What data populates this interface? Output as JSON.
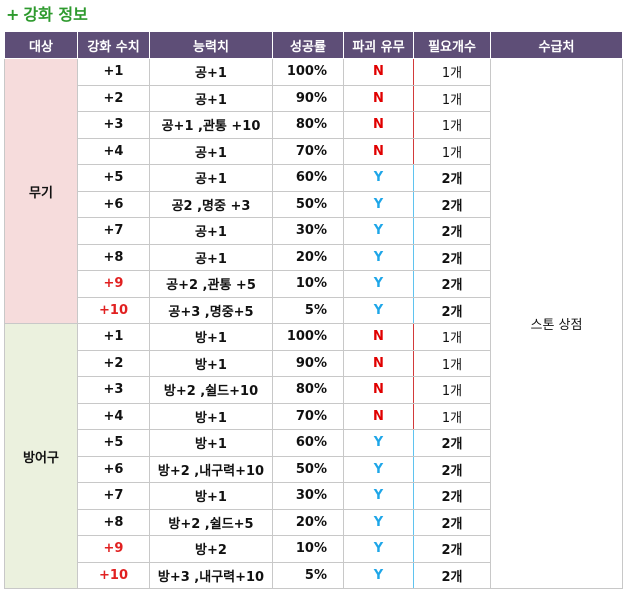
{
  "title": {
    "plus": "+",
    "text": "강화 정보"
  },
  "headers": [
    "대상",
    "강화 수치",
    "능력치",
    "성공률",
    "파괴 유무",
    "필요개수",
    "수급처"
  ],
  "source": "스톤 상점",
  "groups": [
    {
      "target": "무기",
      "rows": [
        {
          "level": "+1",
          "stat": "공+1",
          "rate": "100%",
          "destroy": "N",
          "count": "1개"
        },
        {
          "level": "+2",
          "stat": "공+1",
          "rate": "90%",
          "destroy": "N",
          "count": "1개"
        },
        {
          "level": "+3",
          "stat": "공+1 ,관통 +10",
          "rate": "80%",
          "destroy": "N",
          "count": "1개"
        },
        {
          "level": "+4",
          "stat": "공+1",
          "rate": "70%",
          "destroy": "N",
          "count": "1개"
        },
        {
          "level": "+5",
          "stat": "공+1",
          "rate": "60%",
          "destroy": "Y",
          "count": "2개"
        },
        {
          "level": "+6",
          "stat": "공2 ,명중 +3",
          "rate": "50%",
          "destroy": "Y",
          "count": "2개"
        },
        {
          "level": "+7",
          "stat": "공+1",
          "rate": "30%",
          "destroy": "Y",
          "count": "2개"
        },
        {
          "level": "+8",
          "stat": "공+1",
          "rate": "20%",
          "destroy": "Y",
          "count": "2개"
        },
        {
          "level": "+9",
          "stat": "공+2 ,관통 +5",
          "rate": "10%",
          "destroy": "Y",
          "count": "2개"
        },
        {
          "level": "+10",
          "stat": "공+3 ,명중+5",
          "rate": "5%",
          "destroy": "Y",
          "count": "2개"
        }
      ]
    },
    {
      "target": "방어구",
      "rows": [
        {
          "level": "+1",
          "stat": "방+1",
          "rate": "100%",
          "destroy": "N",
          "count": "1개"
        },
        {
          "level": "+2",
          "stat": "방+1",
          "rate": "90%",
          "destroy": "N",
          "count": "1개"
        },
        {
          "level": "+3",
          "stat": "방+2 ,쉴드+10",
          "rate": "80%",
          "destroy": "N",
          "count": "1개"
        },
        {
          "level": "+4",
          "stat": "방+1",
          "rate": "70%",
          "destroy": "N",
          "count": "1개"
        },
        {
          "level": "+5",
          "stat": "방+1",
          "rate": "60%",
          "destroy": "Y",
          "count": "2개"
        },
        {
          "level": "+6",
          "stat": "방+2 ,내구력+10",
          "rate": "50%",
          "destroy": "Y",
          "count": "2개"
        },
        {
          "level": "+7",
          "stat": "방+1",
          "rate": "30%",
          "destroy": "Y",
          "count": "2개"
        },
        {
          "level": "+8",
          "stat": "방+2 ,쉴드+5",
          "rate": "20%",
          "destroy": "Y",
          "count": "2개"
        },
        {
          "level": "+9",
          "stat": "방+2",
          "rate": "10%",
          "destroy": "Y",
          "count": "2개"
        },
        {
          "level": "+10",
          "stat": "방+3 ,내구력+10",
          "rate": "5%",
          "destroy": "Y",
          "count": "2개"
        }
      ]
    }
  ],
  "colors": {
    "title": "#2e9a2e",
    "header_bg": "#5e4e77",
    "weapon_bg": "#f6dcdc",
    "armor_bg": "#ebf1de",
    "destroy_n": "#e00000",
    "destroy_y": "#1ea6e8",
    "high_level": "#e12020"
  }
}
